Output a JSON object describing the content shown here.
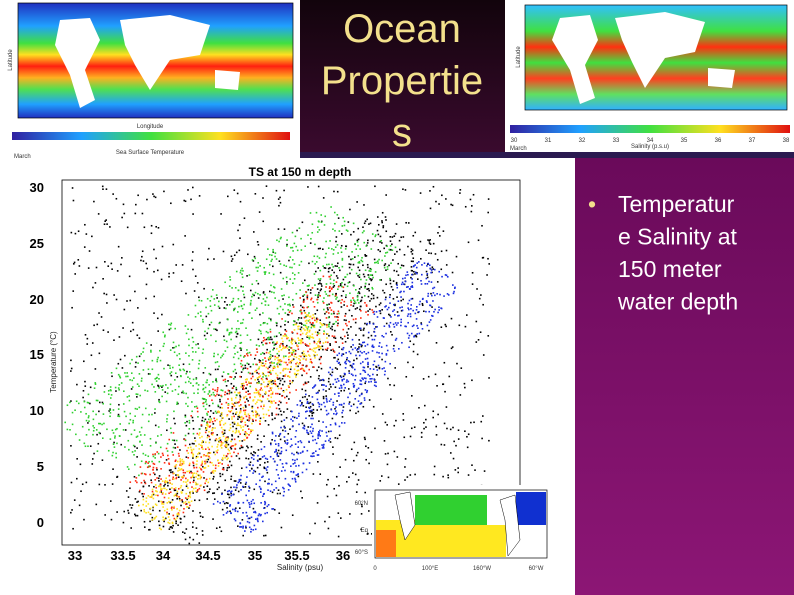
{
  "title": {
    "lines": [
      "Ocean",
      "Propertie",
      "s"
    ]
  },
  "bullet": {
    "lines": [
      "Temperatur",
      "e Salinity at",
      "150 meter",
      "water depth"
    ]
  },
  "sst_map": {
    "x_label": "Longitude",
    "y_label": "Latitude",
    "colorbar_label": "Sea Surface Temperature",
    "date": "March"
  },
  "salinity_map": {
    "y_label": "Latitude",
    "colorbar_label": "Salinity (p.s.u)",
    "date": "March",
    "colorbar_ticks": [
      "30",
      "31",
      "32",
      "33",
      "34",
      "35",
      "36",
      "37",
      "38"
    ]
  },
  "ts_plot": {
    "title": "TS at 150 m depth",
    "y_label": "Temperature (°C)",
    "x_label": "Salinity (psu)",
    "yticks": [
      "30",
      "25",
      "20",
      "15",
      "10",
      "5",
      "0"
    ],
    "xticks": [
      "33",
      "33.5",
      "34",
      "34.5",
      "35",
      "35.5",
      "36"
    ]
  },
  "inset_map": {
    "lat_labels": [
      "60°N",
      "Eq",
      "60°S"
    ],
    "lon_labels": [
      "0",
      "100°E",
      "160°W",
      "60°W"
    ]
  }
}
